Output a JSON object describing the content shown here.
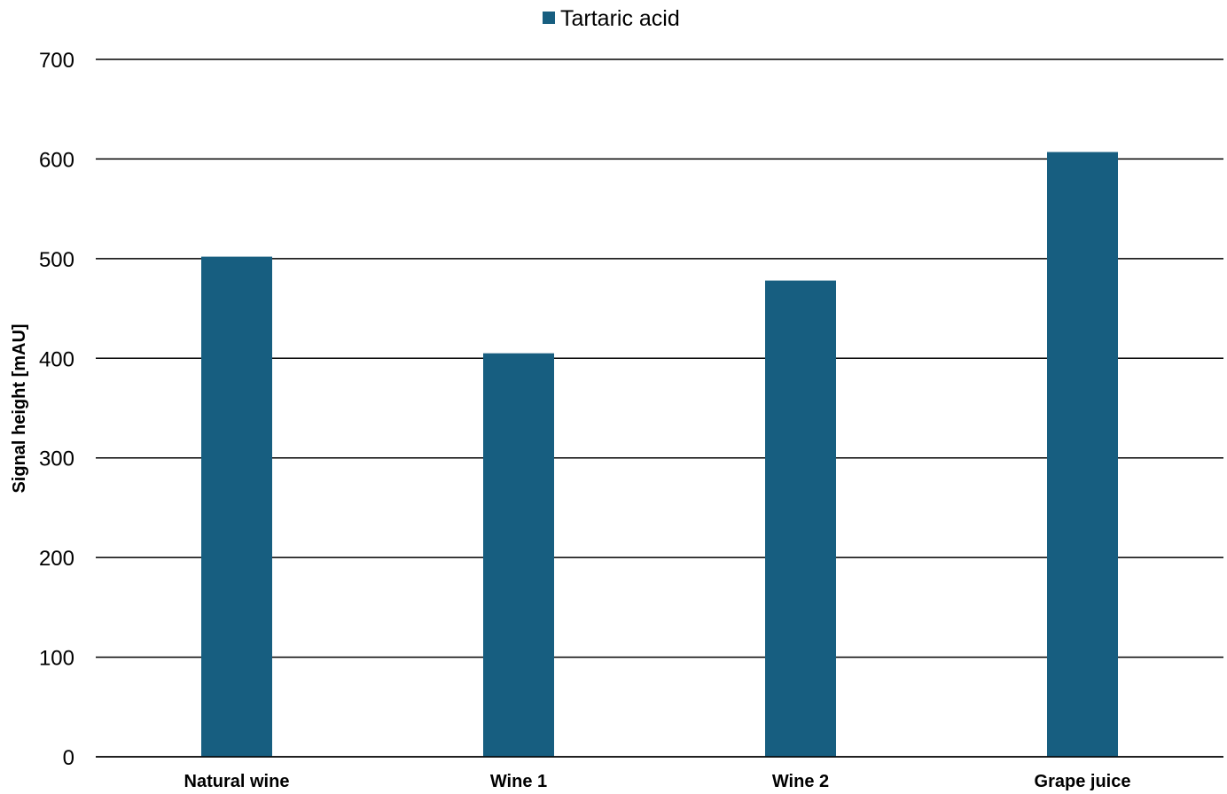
{
  "chart_data": {
    "type": "bar",
    "categories": [
      "Natural wine",
      "Wine 1",
      "Wine 2",
      "Grape juice"
    ],
    "series": [
      {
        "name": "Tartaric acid",
        "color": "#175E80",
        "values": [
          502,
          405,
          478,
          607
        ]
      }
    ],
    "title": "",
    "xlabel": "",
    "ylabel": "Signal height [mAU]",
    "ylim": [
      0,
      700
    ],
    "yticks": [
      0,
      100,
      200,
      300,
      400,
      500,
      600,
      700
    ],
    "grid": true,
    "legend_position": "top-center"
  }
}
